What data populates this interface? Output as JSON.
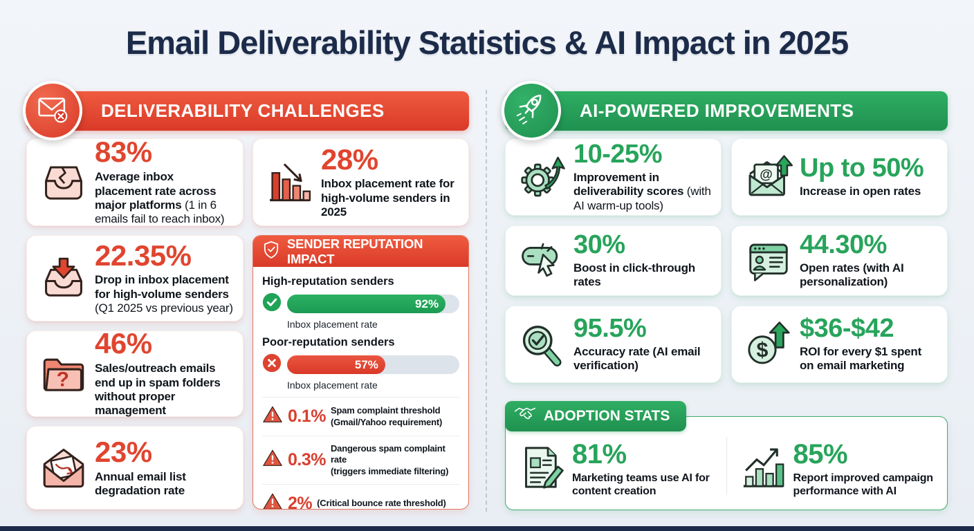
{
  "title": "Email Deliverability Statistics & AI Impact in 2025",
  "colors": {
    "accent_red": "#e0452f",
    "accent_green": "#27a45b",
    "navy": "#1c2b49",
    "background": "#edf1f6",
    "bar_track": "#dde3ea",
    "bar_good": "#22a455",
    "bar_bad": "#e0452f"
  },
  "left": {
    "header": "DELIVERABILITY CHALLENGES",
    "header_icon": "envelope-x-icon",
    "cards": [
      {
        "icon": "broken-inbox-icon",
        "value": "83%",
        "bold": "Average inbox placement rate across major platforms",
        "note": " (1 in 6 emails fail to reach inbox)"
      },
      {
        "icon": "declining-bars-icon",
        "value": "28%",
        "bold": "Inbox placement rate for high-volume senders in 2025",
        "note": ""
      },
      {
        "icon": "inbox-down-arrow-icon",
        "value": "22.35%",
        "bold": "Drop in inbox placement for high-volume senders",
        "note": " (Q1 2025 vs previous year)"
      },
      {
        "icon": "folder-question-icon",
        "value": "46%",
        "bold": "Sales/outreach emails end up in spam folders without proper management",
        "note": ""
      },
      {
        "icon": "envelope-degraded-icon",
        "value": "23%",
        "bold": "Annual email list degradation rate",
        "note": ""
      }
    ],
    "reputation": {
      "header": "SENDER REPUTATION IMPACT",
      "header_icon": "shield-check-icon",
      "bars": [
        {
          "label": "High-reputation senders",
          "value": "92%",
          "pct": 92,
          "caption": "Inbox placement rate",
          "status": "good",
          "icon": "check-circle-icon"
        },
        {
          "label": "Poor-reputation senders",
          "value": "57%",
          "pct": 57,
          "caption": "Inbox placement rate",
          "status": "bad",
          "icon": "x-circle-icon"
        }
      ],
      "thresholds": [
        {
          "icon": "warning-triangle-icon",
          "value": "0.1%",
          "line1": "Spam complaint threshold",
          "line2": "(Gmail/Yahoo requirement)"
        },
        {
          "icon": "warning-triangle-icon",
          "value": "0.3%",
          "line1": "Dangerous spam complaint rate",
          "line2": "(triggers immediate filtering)"
        },
        {
          "icon": "warning-triangle-icon",
          "value": "2%",
          "line1": "(Critical bounce rate threshold)",
          "line2": ""
        }
      ]
    }
  },
  "right": {
    "header": "AI-POWERED IMPROVEMENTS",
    "header_icon": "rocket-icon",
    "cards": [
      {
        "icon": "gear-up-arrow-icon",
        "value": "10-25%",
        "bold": "Improvement in deliverability scores",
        "note": " (with AI warm-up tools)"
      },
      {
        "icon": "envelope-at-up-icon",
        "value": "Up to 50%",
        "bold": "Increase in open rates",
        "note": ""
      },
      {
        "icon": "click-cursor-icon",
        "value": "30%",
        "bold": "Boost in click-through rates",
        "note": ""
      },
      {
        "icon": "window-profile-icon",
        "value": "44.30%",
        "bold": "Open rates (with AI personalization)",
        "note": ""
      },
      {
        "icon": "magnifier-check-icon",
        "value": "95.5%",
        "bold": "Accuracy rate (AI email verification)",
        "note": ""
      },
      {
        "icon": "dollar-up-arrow-icon",
        "value": "$36-$42",
        "bold": "ROI for every $1 spent on email marketing",
        "note": ""
      }
    ],
    "adoption": {
      "header": "ADOPTION STATS",
      "header_icon": "handshake-icon",
      "stats": [
        {
          "icon": "document-pencil-icon",
          "value": "81%",
          "label": "Marketing teams use AI for content creation"
        },
        {
          "icon": "chart-up-icon",
          "value": "85%",
          "label": "Report improved campaign performance with AI"
        }
      ]
    }
  },
  "chart_data": [
    {
      "type": "bar",
      "title": "Sender Reputation Impact — Inbox placement rate",
      "categories": [
        "High-reputation senders",
        "Poor-reputation senders"
      ],
      "values": [
        92,
        57
      ],
      "unit": "%",
      "xlim": [
        0,
        100
      ],
      "annotations": [
        "0.1% Spam complaint threshold (Gmail/Yahoo requirement)",
        "0.3% Dangerous spam complaint rate (triggers immediate filtering)",
        "2% (Critical bounce rate threshold)"
      ]
    },
    {
      "type": "table",
      "title": "Deliverability Challenges",
      "rows": [
        [
          "83%",
          "Average inbox placement rate across major platforms (1 in 6 emails fail to reach inbox)"
        ],
        [
          "28%",
          "Inbox placement rate for high-volume senders in 2025"
        ],
        [
          "22.35%",
          "Drop in inbox placement for high-volume senders (Q1 2025 vs previous year)"
        ],
        [
          "46%",
          "Sales/outreach emails end up in spam folders without proper management"
        ],
        [
          "23%",
          "Annual email list degradation rate"
        ]
      ]
    },
    {
      "type": "table",
      "title": "AI-Powered Improvements",
      "rows": [
        [
          "10-25%",
          "Improvement in deliverability scores (with AI warm-up tools)"
        ],
        [
          "Up to 50%",
          "Increase in open rates"
        ],
        [
          "30%",
          "Boost in click-through rates"
        ],
        [
          "44.30%",
          "Open rates (with AI personalization)"
        ],
        [
          "95.5%",
          "Accuracy rate (AI email verification)"
        ],
        [
          "$36-$42",
          "ROI for every $1 spent on email marketing"
        ]
      ]
    },
    {
      "type": "table",
      "title": "Adoption Stats",
      "rows": [
        [
          "81%",
          "Marketing teams use AI for content creation"
        ],
        [
          "85%",
          "Report improved campaign performance with AI"
        ]
      ]
    }
  ]
}
